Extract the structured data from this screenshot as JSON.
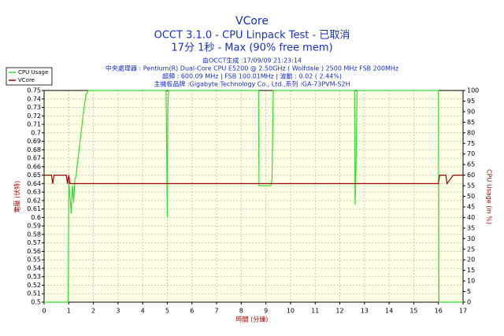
{
  "chart_data": {
    "type": "line",
    "title": "VCore",
    "subtitle": [
      "OCCT 3.1.0 - CPU Linpack Test - 已取消",
      "17分 1秒 - Max (90% free mem)"
    ],
    "info": [
      "由OCCT生成 :17/09/09 21:23:14",
      "中央處理器 : Pentium(R) Dual-Core CPU E5200 @ 2.50GHz ( Wolfdale ) 2500 MHz FSB 200MHz",
      "超頻 : 600.09 MHz | FSB 100.01MHz | 波動 : 0.02 ( 2.44%)",
      "主機板品牌 :Gigabyte Technology Co., Ltd.,系列 :GA-73PVM-S2H"
    ],
    "xlabel": "時間 (分鐘)",
    "ylabel": "電壓 (伏特)",
    "y2label": "CPU Usage (in %)",
    "xlim": [
      0,
      17
    ],
    "xticks": [
      0,
      1,
      2,
      3,
      4,
      5,
      6,
      7,
      8,
      9,
      10,
      11,
      12,
      13,
      14,
      15,
      16,
      17
    ],
    "ylim": [
      0.5,
      0.75
    ],
    "yticks": [
      0.5,
      0.51,
      0.52,
      0.53,
      0.54,
      0.55,
      0.56,
      0.57,
      0.58,
      0.59,
      0.6,
      0.61,
      0.62,
      0.63,
      0.64,
      0.65,
      0.66,
      0.67,
      0.68,
      0.69,
      0.7,
      0.71,
      0.72,
      0.73,
      0.74,
      0.75
    ],
    "y2lim": [
      0,
      100
    ],
    "y2ticks": [
      0,
      5,
      10,
      15,
      20,
      25,
      30,
      35,
      40,
      45,
      50,
      55,
      60,
      65,
      70,
      75,
      80,
      85,
      90,
      95,
      100
    ],
    "grid": true,
    "legend": "top-left",
    "series": [
      {
        "name": "CPU Usage",
        "color": "#33dd33",
        "axis": "y2",
        "x": [
          0,
          0.98,
          1.0,
          1.05,
          1.1,
          1.15,
          1.2,
          1.25,
          1.3,
          1.4,
          1.5,
          1.6,
          1.7,
          1.8,
          4.95,
          5.0,
          5.02,
          5.05,
          8.7,
          8.72,
          8.75,
          9.2,
          9.25,
          9.3,
          12.6,
          12.62,
          12.65,
          12.7,
          16.0,
          16.02,
          17
        ],
        "values": [
          0,
          0,
          57,
          50,
          42,
          55,
          47,
          58,
          60,
          70,
          80,
          90,
          98,
          100,
          100,
          40,
          90,
          100,
          100,
          55,
          55,
          55,
          58,
          100,
          100,
          46,
          60,
          100,
          100,
          0,
          0
        ]
      },
      {
        "name": "VCore",
        "color": "#990000",
        "axis": "y",
        "x": [
          0,
          0.3,
          0.35,
          0.4,
          0.9,
          0.95,
          1.0,
          1.05,
          16.0,
          16.05,
          16.3,
          16.35,
          16.6,
          16.65,
          17
        ],
        "values": [
          0.65,
          0.65,
          0.64,
          0.65,
          0.65,
          0.64,
          0.65,
          0.64,
          0.64,
          0.65,
          0.65,
          0.64,
          0.65,
          0.65,
          0.65
        ]
      }
    ]
  }
}
